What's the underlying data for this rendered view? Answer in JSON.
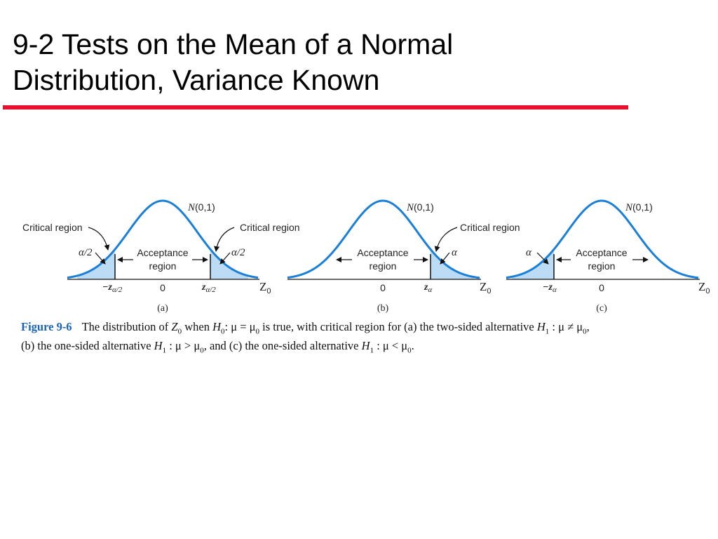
{
  "slide": {
    "title_line1": "9-2 Tests on the Mean of a Normal",
    "title_line2": "Distribution, Variance Known",
    "accent_color": "#e8102e"
  },
  "figure": {
    "curve_color": "#1a7fd8",
    "fill_color": "#bcdcf5",
    "panels": [
      {
        "id": "a",
        "curve_label_N": "N",
        "curve_label_params": "(0,1)",
        "left_region_label": "Critical region",
        "right_region_label": "Critical region",
        "left_alpha": "α/2",
        "right_alpha": "α/2",
        "acceptance_line1": "Acceptance",
        "acceptance_line2": "region",
        "left_tick": "−z",
        "left_tick_sub": "α/2",
        "center_tick": "0",
        "right_tick": "z",
        "right_tick_sub": "α/2",
        "axis_label": "Z",
        "axis_label_sub": "0",
        "panel_label": "(a)"
      },
      {
        "id": "b",
        "curve_label_N": "N",
        "curve_label_params": "(0,1)",
        "right_region_label": "Critical region",
        "right_alpha": "α",
        "acceptance_line1": "Acceptance",
        "acceptance_line2": "region",
        "center_tick": "0",
        "right_tick": "z",
        "right_tick_sub": "α",
        "axis_label": "Z",
        "axis_label_sub": "0",
        "panel_label": "(b)"
      },
      {
        "id": "c",
        "curve_label_N": "N",
        "curve_label_params": "(0,1)",
        "left_alpha": "α",
        "acceptance_line1": "Acceptance",
        "acceptance_line2": "region",
        "left_tick": "−z",
        "left_tick_sub": "α",
        "center_tick": "0",
        "axis_label": "Z",
        "axis_label_sub": "0",
        "panel_label": "(c)"
      }
    ]
  },
  "caption": {
    "figure_tag": "Figure 9-6",
    "line1_a": "The distribution of ",
    "Z": "Z",
    "zero": "0",
    "line1_b": " when ",
    "H": "H",
    "line1_c": ": μ = μ",
    "line1_d": " is true, with critical region for (a) the two-sided alternative ",
    "one": "1",
    "line1_e": " : μ ≠ μ",
    "line1_f": ",",
    "line2_a": "(b) the one-sided alternative ",
    "line2_b": " : μ > μ",
    "line2_c": ", and (c) the one-sided alternative ",
    "line2_d": " : μ < μ",
    "line2_e": "."
  }
}
